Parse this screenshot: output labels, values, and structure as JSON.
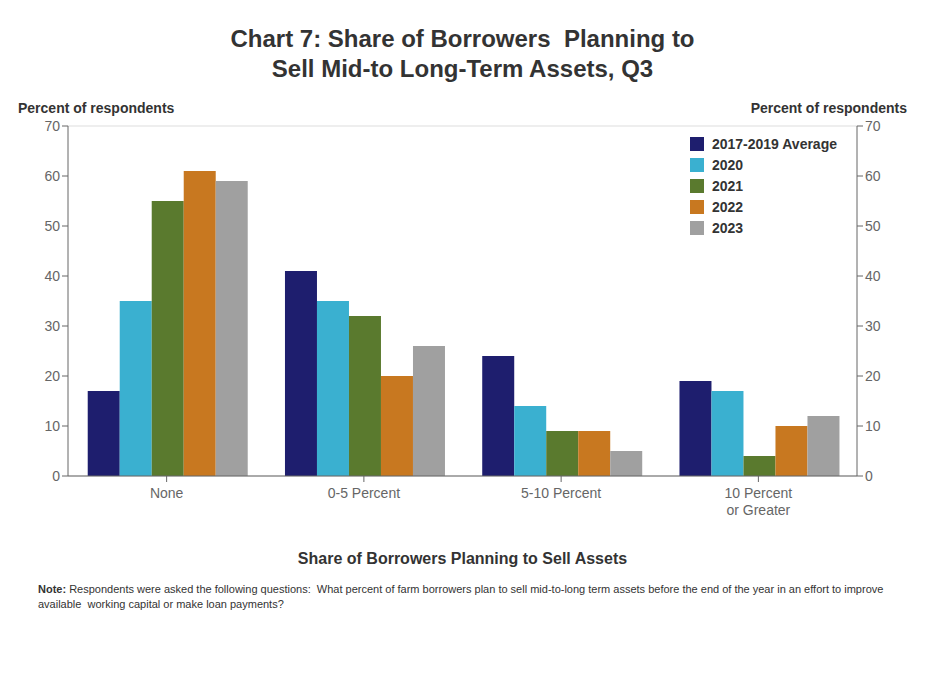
{
  "chart_data": {
    "type": "bar",
    "title": "Chart 7: Share of Borrowers  Planning to\nSell Mid-to Long-Term Assets, Q3",
    "x_label": "Share of Borrowers Planning to Sell Assets",
    "y_label": "Percent of respondents",
    "y2_label": "Percent of respondents",
    "categories": [
      "None",
      "0-5 Percent",
      "5-10 Percent",
      "10 Percent\nor Greater"
    ],
    "series": [
      {
        "name": "2017-2019 Average",
        "color": "#1e1e6e",
        "values": [
          17,
          41,
          24,
          19
        ]
      },
      {
        "name": "2020",
        "color": "#3ab0d0",
        "values": [
          35,
          35,
          14,
          17
        ]
      },
      {
        "name": "2021",
        "color": "#5a7a2e",
        "values": [
          55,
          32,
          9,
          4
        ]
      },
      {
        "name": "2022",
        "color": "#c87820",
        "values": [
          61,
          20,
          9,
          10
        ]
      },
      {
        "name": "2023",
        "color": "#a0a0a0",
        "values": [
          59,
          26,
          5,
          12
        ]
      }
    ],
    "ylim": [
      0,
      70
    ],
    "yticks": [
      0,
      10,
      20,
      30,
      40,
      50,
      60,
      70
    ],
    "y2lim": [
      0,
      70
    ],
    "y2ticks": [
      0,
      10,
      20,
      30,
      40,
      50,
      60,
      70
    ],
    "grid": true,
    "legend": "upper right",
    "annotations": [
      "Note:",
      " Respondents were asked the following questions:  What percent of farm borrowers plan to sell mid-to-long term assets before the end of the year in an effort to improve available  working capital or make loan payments?"
    ]
  }
}
